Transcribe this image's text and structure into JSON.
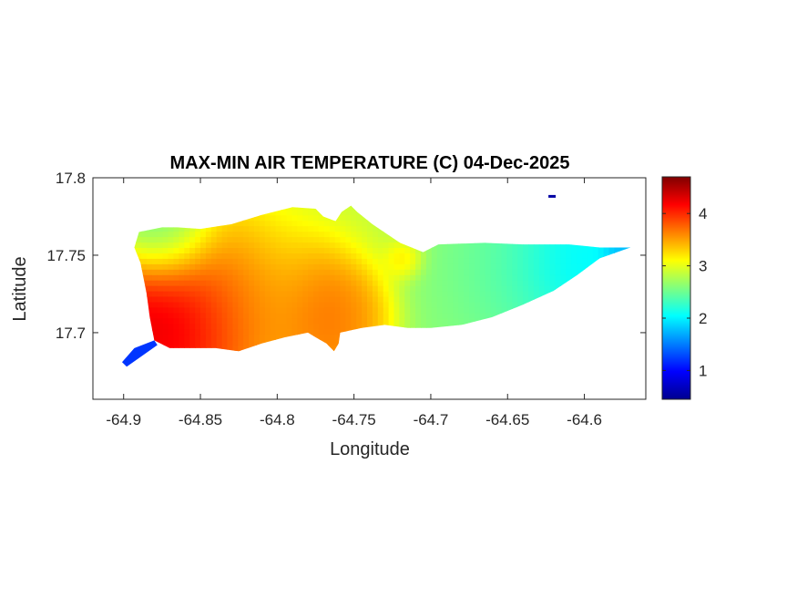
{
  "chart_data": {
    "type": "heatmap",
    "title": "MAX-MIN AIR TEMPERATURE (C) 04-Dec-2025",
    "xlabel": "Longitude",
    "ylabel": "Latitude",
    "xlim": [
      -64.92,
      -64.56
    ],
    "ylim": [
      17.657,
      17.8
    ],
    "x_ticks": [
      -64.9,
      -64.85,
      -64.8,
      -64.75,
      -64.7,
      -64.65,
      -64.6
    ],
    "x_tick_labels": [
      "-64.9",
      "-64.85",
      "-64.8",
      "-64.75",
      "-64.7",
      "-64.65",
      "-64.6"
    ],
    "y_ticks": [
      17.7,
      17.75,
      17.8
    ],
    "y_tick_labels": [
      "17.7",
      "17.75",
      "17.8"
    ],
    "colorbar": {
      "colormap": "jet",
      "range": [
        0.45,
        4.7
      ],
      "ticks": [
        1,
        2,
        3,
        4
      ],
      "tick_labels": [
        "1",
        "2",
        "3",
        "4"
      ]
    },
    "grid": false,
    "outline": [
      [
        -64.88,
        17.695
      ],
      [
        -64.87,
        17.69
      ],
      [
        -64.84,
        17.69
      ],
      [
        -64.825,
        17.688
      ],
      [
        -64.81,
        17.693
      ],
      [
        -64.795,
        17.697
      ],
      [
        -64.78,
        17.7
      ],
      [
        -64.775,
        17.697
      ],
      [
        -64.768,
        17.693
      ],
      [
        -64.763,
        17.688
      ],
      [
        -64.76,
        17.693
      ],
      [
        -64.759,
        17.7
      ],
      [
        -64.745,
        17.703
      ],
      [
        -64.73,
        17.705
      ],
      [
        -64.715,
        17.703
      ],
      [
        -64.7,
        17.703
      ],
      [
        -64.68,
        17.705
      ],
      [
        -64.66,
        17.71
      ],
      [
        -64.64,
        17.718
      ],
      [
        -64.62,
        17.727
      ],
      [
        -64.605,
        17.737
      ],
      [
        -64.59,
        17.748
      ],
      [
        -64.57,
        17.755
      ],
      [
        -64.59,
        17.755
      ],
      [
        -64.61,
        17.757
      ],
      [
        -64.64,
        17.757
      ],
      [
        -64.665,
        17.758
      ],
      [
        -64.695,
        17.757
      ],
      [
        -64.705,
        17.752
      ],
      [
        -64.72,
        17.758
      ],
      [
        -64.738,
        17.77
      ],
      [
        -64.748,
        17.778
      ],
      [
        -64.752,
        17.782
      ],
      [
        -64.758,
        17.778
      ],
      [
        -64.762,
        17.772
      ],
      [
        -64.77,
        17.775
      ],
      [
        -64.775,
        17.78
      ],
      [
        -64.79,
        17.781
      ],
      [
        -64.81,
        17.776
      ],
      [
        -64.83,
        17.77
      ],
      [
        -64.85,
        17.767
      ],
      [
        -64.865,
        17.768
      ],
      [
        -64.875,
        17.768
      ],
      [
        -64.89,
        17.765
      ],
      [
        -64.893,
        17.755
      ],
      [
        -64.889,
        17.745
      ],
      [
        -64.885,
        17.725
      ],
      [
        -64.883,
        17.71
      ]
    ],
    "tail_outline": [
      [
        -64.88,
        17.695
      ],
      [
        -64.893,
        17.69
      ],
      [
        -64.901,
        17.681
      ],
      [
        -64.898,
        17.678
      ],
      [
        -64.888,
        17.685
      ],
      [
        -64.878,
        17.692
      ]
    ],
    "islet": {
      "lon": -64.621,
      "lat": 17.788,
      "value": 0.6
    },
    "temperature_hotspots": [
      {
        "lon": -64.87,
        "lat": 17.712,
        "value": 4.6,
        "spread": 0.04
      },
      {
        "lon": -64.845,
        "lat": 17.72,
        "value": 4.1,
        "spread": 0.05
      },
      {
        "lon": -64.818,
        "lat": 17.728,
        "value": 3.9,
        "spread": 0.04
      },
      {
        "lon": -64.79,
        "lat": 17.712,
        "value": 3.4,
        "spread": 0.045
      },
      {
        "lon": -64.77,
        "lat": 17.71,
        "value": 4.1,
        "spread": 0.03
      },
      {
        "lon": -64.765,
        "lat": 17.735,
        "value": 3.9,
        "spread": 0.028
      },
      {
        "lon": -64.75,
        "lat": 17.715,
        "value": 3.6,
        "spread": 0.025
      },
      {
        "lon": -64.718,
        "lat": 17.748,
        "value": 3.6,
        "spread": 0.012
      },
      {
        "lon": -64.8,
        "lat": 17.745,
        "value": 2.9,
        "spread": 0.05
      },
      {
        "lon": -64.87,
        "lat": 17.76,
        "value": 2.1,
        "spread": 0.03
      },
      {
        "lon": -64.69,
        "lat": 17.735,
        "value": 2.6,
        "spread": 0.05
      },
      {
        "lon": -64.65,
        "lat": 17.74,
        "value": 2.3,
        "spread": 0.04
      },
      {
        "lon": -64.61,
        "lat": 17.745,
        "value": 1.9,
        "spread": 0.035
      },
      {
        "lon": -64.575,
        "lat": 17.754,
        "value": 1.6,
        "spread": 0.012
      },
      {
        "lon": -64.745,
        "lat": 17.765,
        "value": 2.9,
        "spread": 0.03
      }
    ],
    "background_value": 2.7
  }
}
